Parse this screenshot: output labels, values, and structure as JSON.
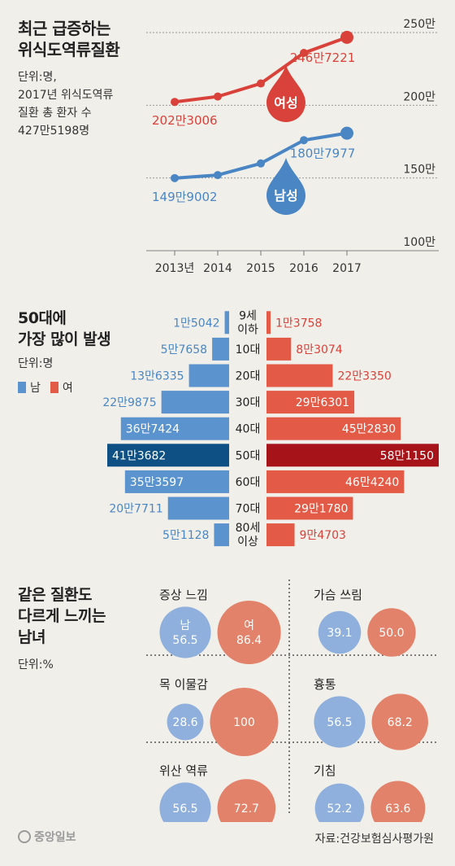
{
  "colors": {
    "female": "#d9423a",
    "male": "#4a86c4",
    "female_bar": "#e35b47",
    "male_bar": "#5b93cf",
    "female_hl": "#a61419",
    "male_hl": "#0e4f84",
    "female_circle": "#e2826a",
    "male_circle": "#8fb0dc",
    "grid": "#9a9a9a"
  },
  "section1": {
    "title_line1": "최근 급증하는",
    "title_line2": "위식도역류질환",
    "unit_line1": "단위:명,",
    "unit_line2": "2017년 위식도역류",
    "unit_line3": "질환 총 환자 수",
    "unit_line4": "427만5198명"
  },
  "section2": {
    "title_line1": "50대에",
    "title_line2": "가장 많이 발생",
    "unit": "단위:명",
    "legend_male": "남",
    "legend_female": "여"
  },
  "section3": {
    "title_line1": "같은 질환도",
    "title_line2": "다르게 느끼는",
    "title_line3": "남녀",
    "unit": "단위:%"
  },
  "source": "자료:건강보험심사평가원",
  "logo": "중앙일보",
  "chart_data": [
    {
      "type": "line",
      "x": [
        "2013년",
        "2014",
        "2015",
        "2016",
        "2017"
      ],
      "y_ticks": [
        "250만",
        "200만",
        "150만",
        "100만"
      ],
      "ylim": [
        1000000,
        2500000
      ],
      "series": [
        {
          "name": "여성",
          "values": [
            2023006,
            2060000,
            2150000,
            2360000,
            2467221
          ],
          "start_label": "202만3006",
          "end_label": "246만7221"
        },
        {
          "name": "남성",
          "values": [
            1499002,
            1520000,
            1600000,
            1760000,
            1807977
          ],
          "start_label": "149만9002",
          "end_label": "180만7977"
        }
      ]
    },
    {
      "type": "bar",
      "orientation": "horizontal-back-to-back",
      "categories": [
        "9세\n이하",
        "10대",
        "20대",
        "30대",
        "40대",
        "50대",
        "60대",
        "70대",
        "80세\n이상"
      ],
      "highlight": "50대",
      "series": [
        {
          "name": "남",
          "values": [
            15042,
            57658,
            136335,
            229875,
            367424,
            413682,
            353597,
            207711,
            51128
          ],
          "labels": [
            "1만5042",
            "5만7658",
            "13만6335",
            "22만9875",
            "36만7424",
            "41만3682",
            "35만3597",
            "20만7711",
            "5만1128"
          ]
        },
        {
          "name": "여",
          "values": [
            13758,
            83074,
            223350,
            296301,
            452830,
            581150,
            464240,
            291780,
            94703
          ],
          "labels": [
            "1만3758",
            "8만3074",
            "22만3350",
            "29만6301",
            "45만2830",
            "58만1150",
            "46만4240",
            "29만1780",
            "9만4703"
          ]
        }
      ]
    },
    {
      "type": "bubble",
      "panels": [
        {
          "name": "증상 느낌",
          "male": 56.5,
          "female": 86.4,
          "male_label": "56.5",
          "female_label": "86.4",
          "male_tag": "남",
          "female_tag": "여"
        },
        {
          "name": "가슴 쓰림",
          "male": 39.1,
          "female": 50.0,
          "male_label": "39.1",
          "female_label": "50.0"
        },
        {
          "name": "목 이물감",
          "male": 28.6,
          "female": 100,
          "male_label": "28.6",
          "female_label": "100"
        },
        {
          "name": "흉통",
          "male": 56.5,
          "female": 68.2,
          "male_label": "56.5",
          "female_label": "68.2"
        },
        {
          "name": "위산 역류",
          "male": 56.5,
          "female": 72.7,
          "male_label": "56.5",
          "female_label": "72.7"
        },
        {
          "name": "기침",
          "male": 52.2,
          "female": 63.6,
          "male_label": "52.2",
          "female_label": "63.6"
        }
      ]
    }
  ]
}
